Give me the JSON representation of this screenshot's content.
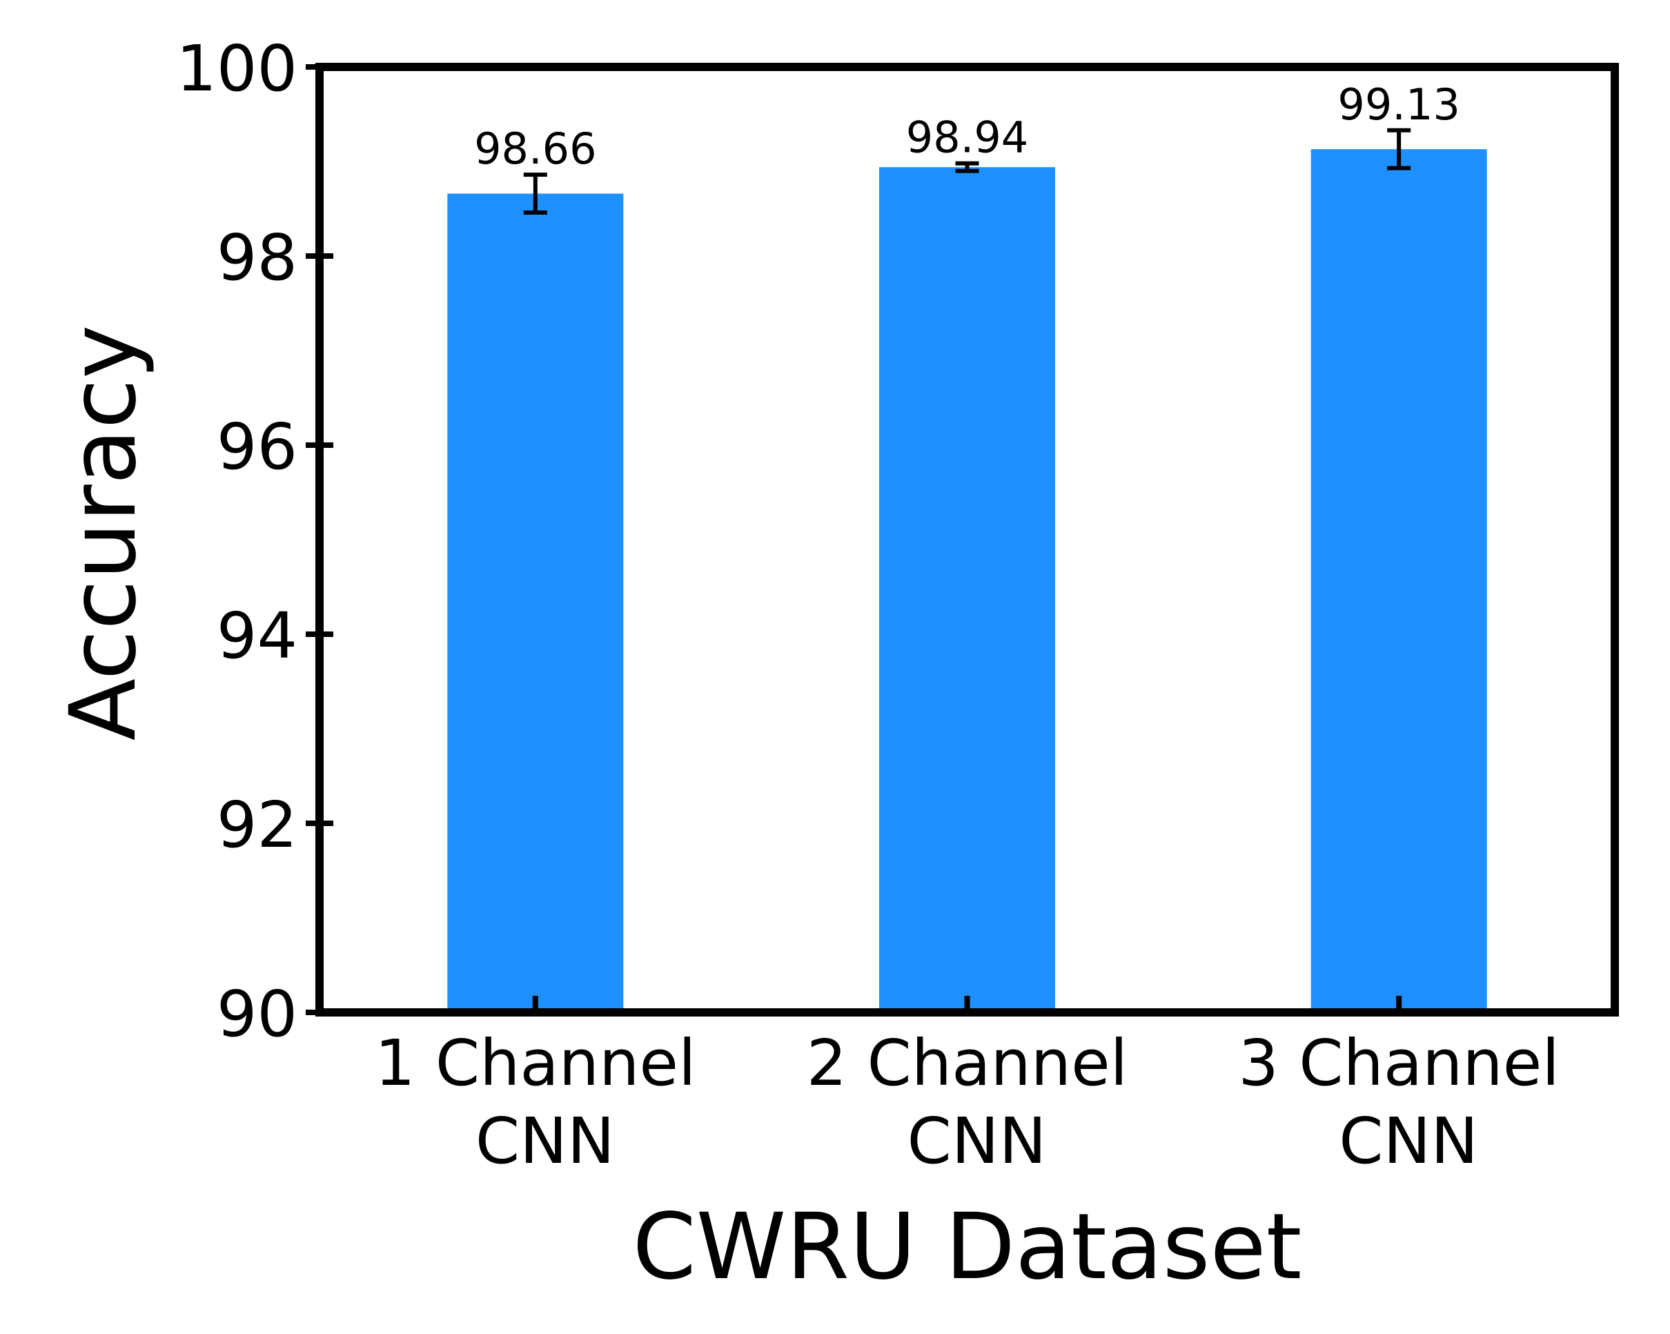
{
  "chart_data": {
    "type": "bar",
    "title": "",
    "xlabel": "CWRU Dataset",
    "ylabel": "Accuracy",
    "ylim": [
      90,
      100
    ],
    "yticks": [
      90,
      92,
      94,
      96,
      98,
      100
    ],
    "grid": false,
    "legend": "none",
    "bar_color": "#1E90FF",
    "categories": [
      [
        "1 Channel",
        "CNN"
      ],
      [
        "2 Channel",
        "CNN"
      ],
      [
        "3 Channel",
        "CNN"
      ]
    ],
    "values": [
      98.66,
      98.94,
      99.13
    ],
    "value_labels": [
      "98.66",
      "98.94",
      "99.13"
    ],
    "error": [
      0.2,
      0.04,
      0.2
    ]
  }
}
